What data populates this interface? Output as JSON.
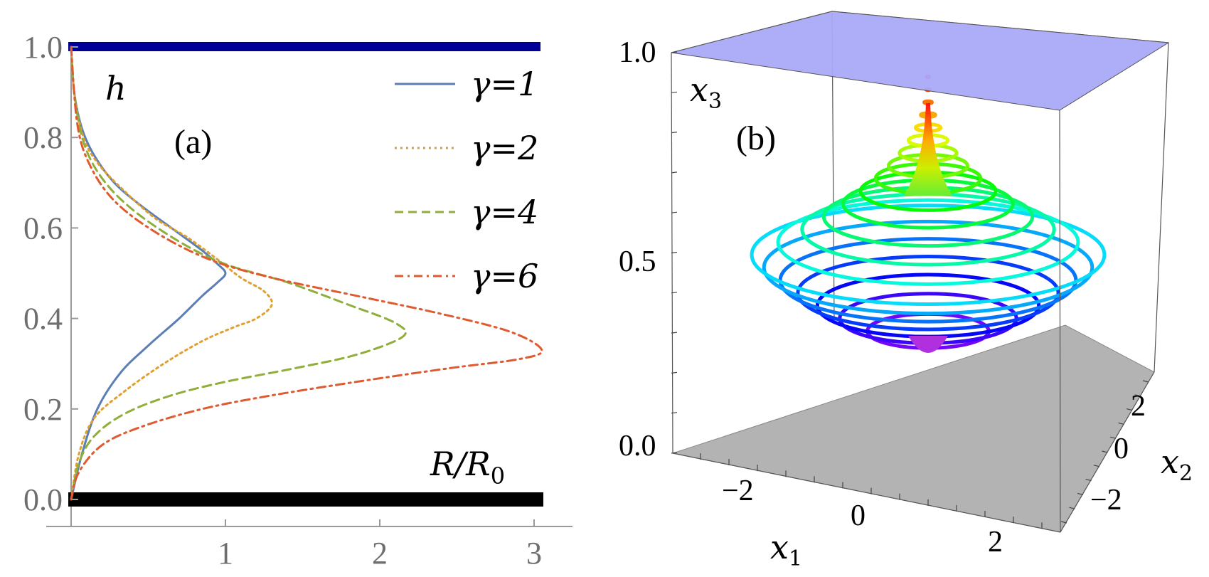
{
  "chart_data": [
    {
      "type": "line",
      "panel_label": "(a)",
      "ylabel": "h",
      "xlabel": "R/R",
      "xlabel_sub": "0",
      "xlim": [
        0,
        3.25
      ],
      "ylim": [
        0,
        1.0
      ],
      "xticks": [
        "1",
        "2",
        "3"
      ],
      "yticks": [
        "0.0",
        "0.2",
        "0.4",
        "0.6",
        "0.8",
        "1.0"
      ],
      "plates": {
        "top_color": "#000099",
        "bottom_color": "#000000"
      },
      "legend": {
        "placement": "top-right"
      },
      "series": [
        {
          "name": "γ=1",
          "gamma": 1,
          "color": "#5b7fb5",
          "style": "solid",
          "points": [
            [
              0.0,
              0.0
            ],
            [
              0.07,
              0.1
            ],
            [
              0.17,
              0.2
            ],
            [
              0.32,
              0.28
            ],
            [
              0.5,
              0.34
            ],
            [
              0.7,
              0.4
            ],
            [
              0.85,
              0.45
            ],
            [
              0.95,
              0.48
            ],
            [
              1.0,
              0.5
            ],
            [
              0.95,
              0.52
            ],
            [
              0.85,
              0.55
            ],
            [
              0.65,
              0.6
            ],
            [
              0.45,
              0.65
            ],
            [
              0.28,
              0.7
            ],
            [
              0.15,
              0.76
            ],
            [
              0.07,
              0.82
            ],
            [
              0.02,
              0.9
            ],
            [
              0.0,
              1.0
            ]
          ]
        },
        {
          "name": "γ=2",
          "gamma": 2,
          "color": "#e0a030",
          "style": "dotted",
          "points": [
            [
              0.0,
              0.0
            ],
            [
              0.05,
              0.1
            ],
            [
              0.15,
              0.18
            ],
            [
              0.35,
              0.24
            ],
            [
              0.6,
              0.3
            ],
            [
              0.85,
              0.35
            ],
            [
              1.05,
              0.38
            ],
            [
              1.2,
              0.4
            ],
            [
              1.3,
              0.43
            ],
            [
              1.25,
              0.46
            ],
            [
              1.1,
              0.49
            ],
            [
              0.95,
              0.53
            ],
            [
              0.75,
              0.58
            ],
            [
              0.55,
              0.62
            ],
            [
              0.35,
              0.68
            ],
            [
              0.18,
              0.74
            ],
            [
              0.08,
              0.8
            ],
            [
              0.02,
              0.9
            ],
            [
              0.0,
              1.0
            ]
          ]
        },
        {
          "name": "γ=4",
          "gamma": 4,
          "color": "#8fae3a",
          "style": "dashed",
          "points": [
            [
              0.0,
              0.0
            ],
            [
              0.05,
              0.08
            ],
            [
              0.15,
              0.14
            ],
            [
              0.35,
              0.19
            ],
            [
              0.65,
              0.23
            ],
            [
              1.0,
              0.26
            ],
            [
              1.45,
              0.29
            ],
            [
              1.85,
              0.32
            ],
            [
              2.15,
              0.36
            ],
            [
              2.1,
              0.39
            ],
            [
              1.8,
              0.43
            ],
            [
              1.4,
              0.48
            ],
            [
              1.0,
              0.52
            ],
            [
              0.7,
              0.57
            ],
            [
              0.4,
              0.64
            ],
            [
              0.2,
              0.71
            ],
            [
              0.08,
              0.79
            ],
            [
              0.02,
              0.9
            ],
            [
              0.0,
              1.0
            ]
          ]
        },
        {
          "name": "γ=6",
          "gamma": 6,
          "color": "#e05a30",
          "style": "dashdot",
          "points": [
            [
              0.0,
              0.0
            ],
            [
              0.05,
              0.06
            ],
            [
              0.2,
              0.12
            ],
            [
              0.45,
              0.16
            ],
            [
              0.85,
              0.2
            ],
            [
              1.3,
              0.23
            ],
            [
              1.85,
              0.26
            ],
            [
              2.45,
              0.29
            ],
            [
              2.9,
              0.31
            ],
            [
              3.05,
              0.33
            ],
            [
              2.85,
              0.37
            ],
            [
              2.4,
              0.41
            ],
            [
              1.85,
              0.45
            ],
            [
              1.3,
              0.49
            ],
            [
              0.9,
              0.53
            ],
            [
              0.55,
              0.59
            ],
            [
              0.28,
              0.66
            ],
            [
              0.12,
              0.74
            ],
            [
              0.04,
              0.83
            ],
            [
              0.0,
              1.0
            ]
          ]
        }
      ]
    },
    {
      "type": "surface3d",
      "panel_label": "(b)",
      "x1label": "x",
      "x1label_sub": "1",
      "x2label": "x",
      "x2label_sub": "2",
      "x3label": "x",
      "x3label_sub": "3",
      "x1ticks": [
        "−2",
        "0",
        "2"
      ],
      "x2ticks": [
        "2",
        "0",
        "−2"
      ],
      "x3ticks": [
        "0.0",
        "0.5",
        "1.0"
      ],
      "x3lim": [
        0,
        1.0
      ],
      "top_plane_color": "#aaaaf8",
      "bottom_plane_color": "#b3b3b3",
      "colormap": "rainbow",
      "ring_count": 22
    }
  ]
}
